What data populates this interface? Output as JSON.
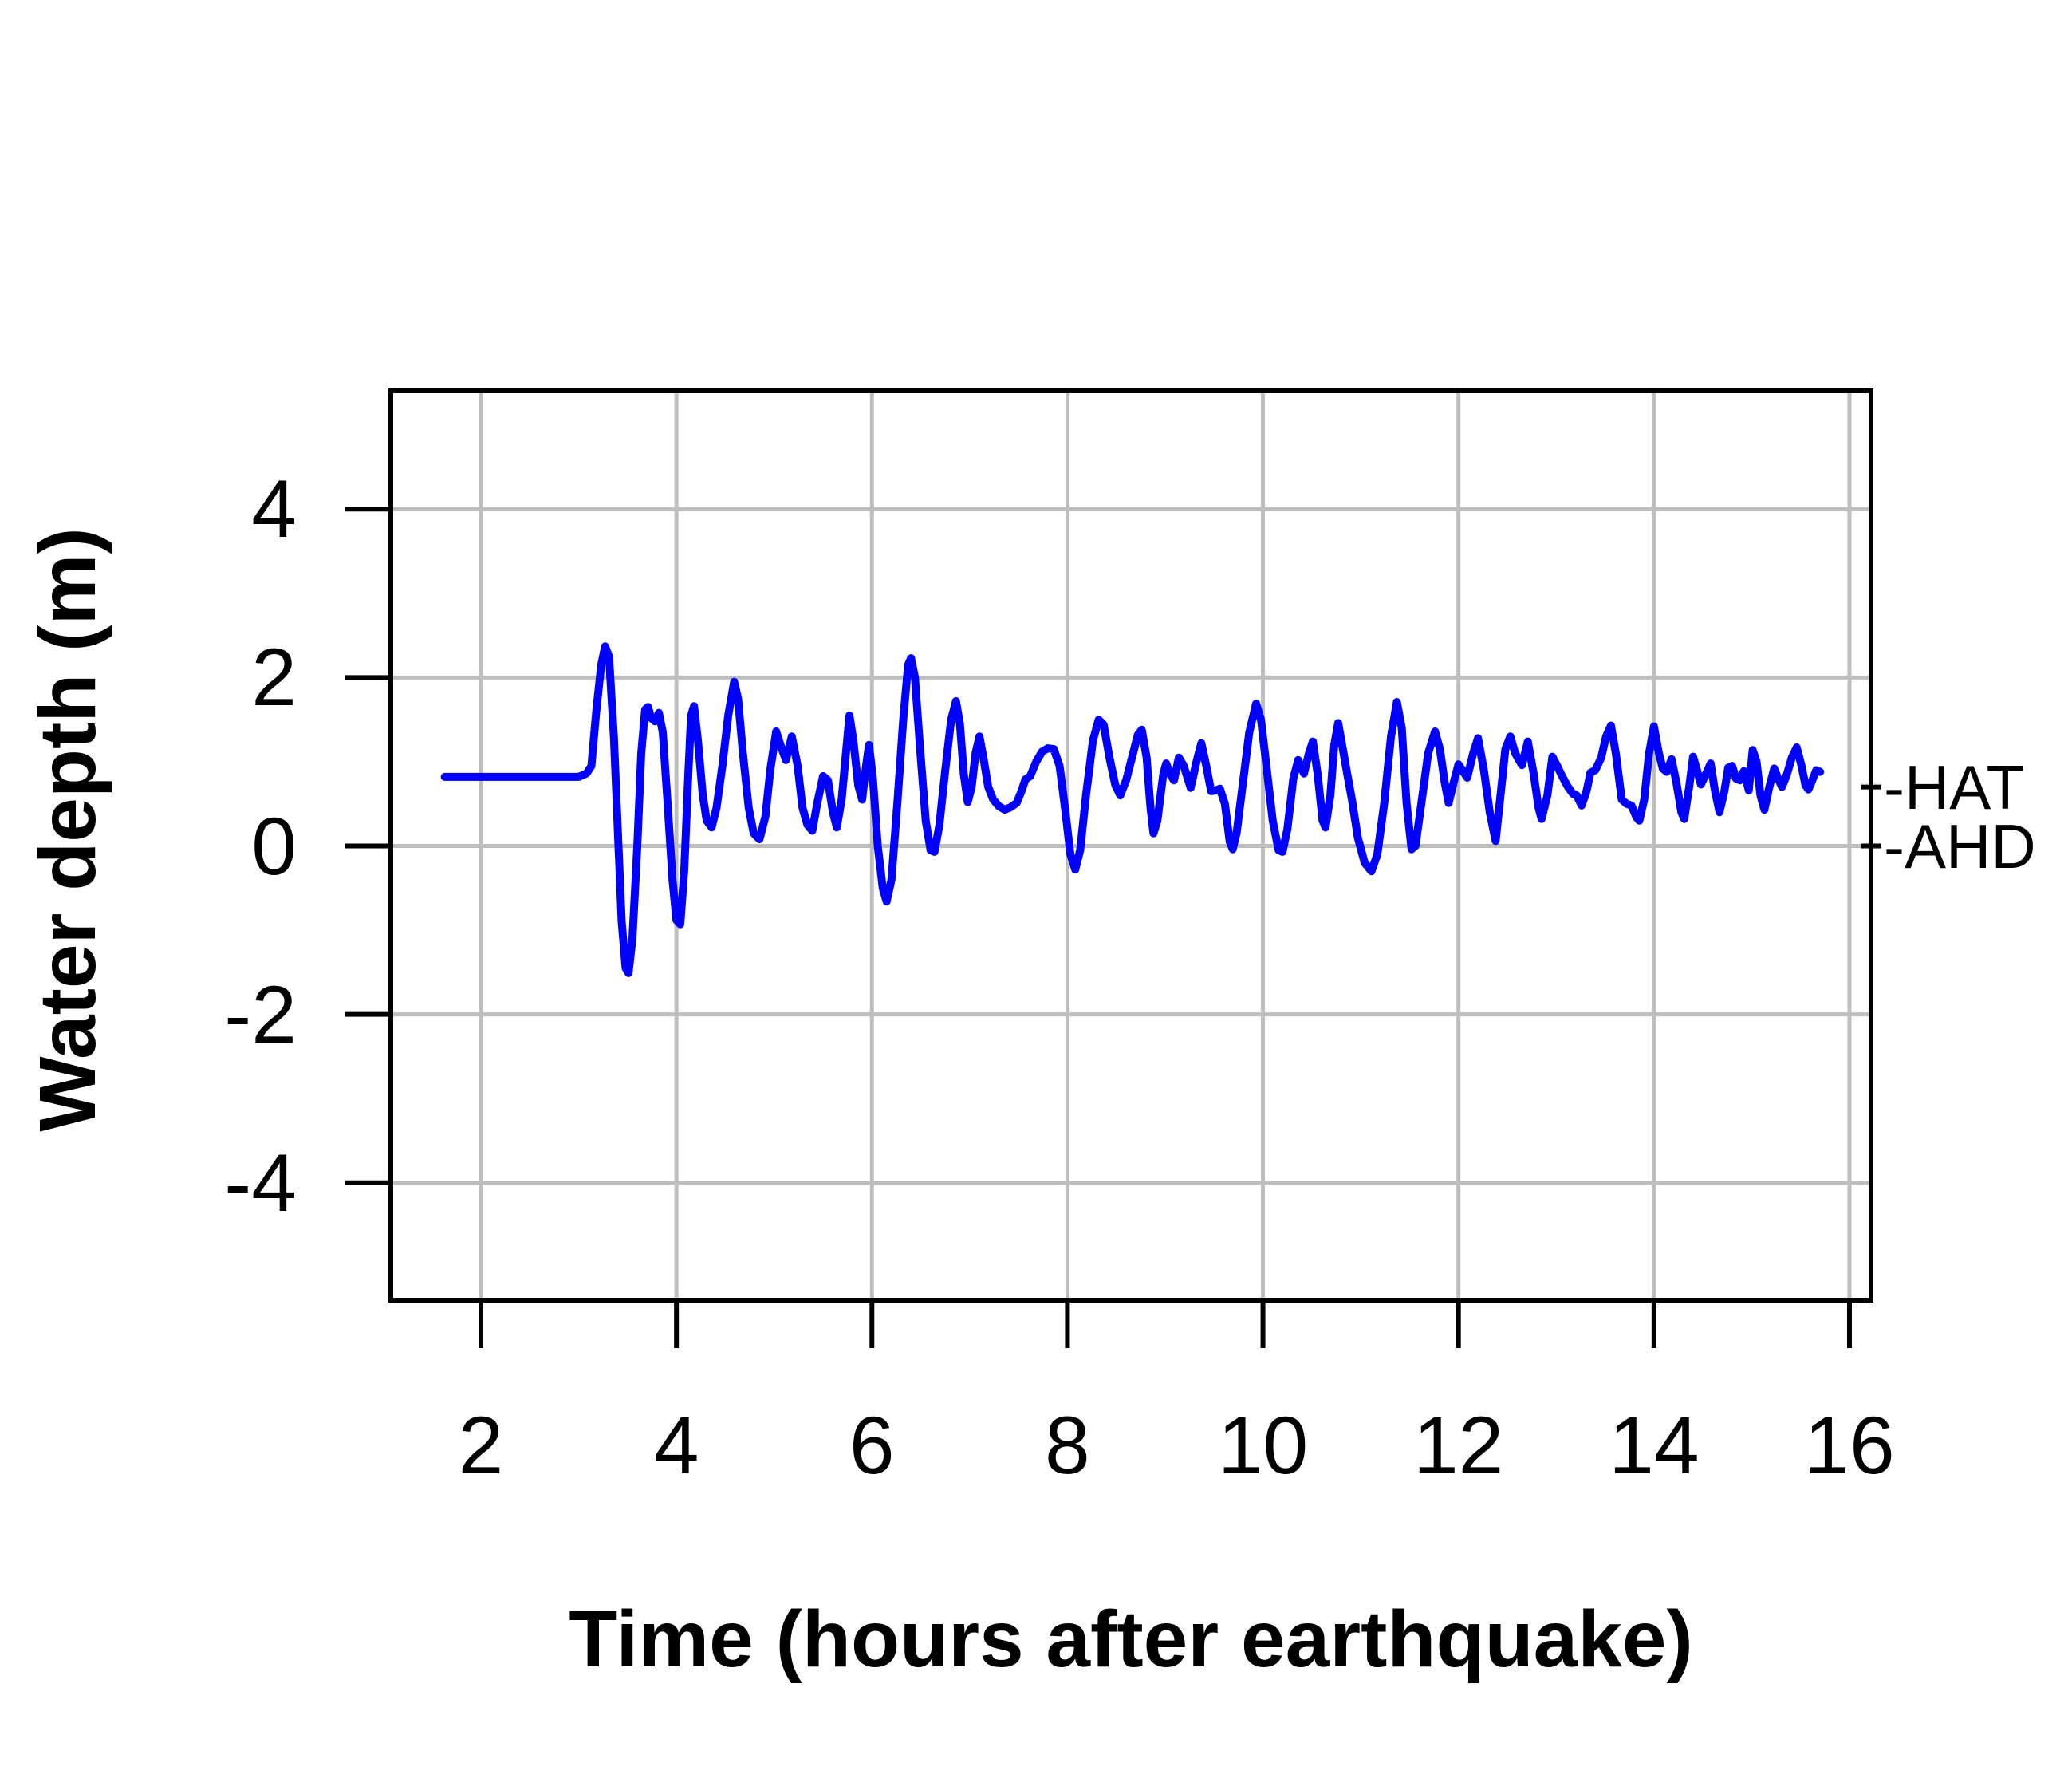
{
  "figure": {
    "background": "#ffffff"
  },
  "chart_data": {
    "type": "line",
    "title": "",
    "xlabel": "Time (hours after earthquake)",
    "ylabel": "Water depth (m)",
    "xlim": [
      1.08,
      16.22
    ],
    "ylim": [
      -5.4,
      5.4
    ],
    "x_ticks": [
      2,
      4,
      6,
      8,
      10,
      12,
      14,
      16
    ],
    "y_ticks": [
      -4,
      -2,
      0,
      2,
      4
    ],
    "grid": true,
    "grid_color": "#bebebe",
    "axis_color": "#000000",
    "line_color": "#0000ff",
    "legend_position": "none",
    "reference_marks": [
      {
        "name": "hat",
        "label": "-HAT",
        "value": 0.7
      },
      {
        "name": "ahd",
        "label": "-AHD",
        "value": 0.0
      }
    ],
    "series": [
      {
        "name": "water-depth",
        "points": [
          [
            1.63,
            0.82
          ],
          [
            1.8,
            0.82
          ],
          [
            2.0,
            0.82
          ],
          [
            2.2,
            0.82
          ],
          [
            2.4,
            0.82
          ],
          [
            2.6,
            0.82
          ],
          [
            2.8,
            0.82
          ],
          [
            3.0,
            0.82
          ],
          [
            3.08,
            0.86
          ],
          [
            3.13,
            0.95
          ],
          [
            3.18,
            1.6
          ],
          [
            3.23,
            2.15
          ],
          [
            3.27,
            2.37
          ],
          [
            3.31,
            2.25
          ],
          [
            3.36,
            1.3
          ],
          [
            3.4,
            0.2
          ],
          [
            3.44,
            -0.9
          ],
          [
            3.48,
            -1.45
          ],
          [
            3.51,
            -1.51
          ],
          [
            3.55,
            -1.1
          ],
          [
            3.6,
            0.0
          ],
          [
            3.64,
            1.1
          ],
          [
            3.68,
            1.62
          ],
          [
            3.71,
            1.65
          ],
          [
            3.74,
            1.52
          ],
          [
            3.78,
            1.48
          ],
          [
            3.82,
            1.58
          ],
          [
            3.86,
            1.35
          ],
          [
            3.91,
            0.5
          ],
          [
            3.96,
            -0.4
          ],
          [
            4.0,
            -0.88
          ],
          [
            4.04,
            -0.93
          ],
          [
            4.08,
            -0.3
          ],
          [
            4.12,
            0.8
          ],
          [
            4.15,
            1.55
          ],
          [
            4.18,
            1.66
          ],
          [
            4.22,
            1.25
          ],
          [
            4.27,
            0.6
          ],
          [
            4.31,
            0.3
          ],
          [
            4.36,
            0.22
          ],
          [
            4.41,
            0.45
          ],
          [
            4.47,
            0.95
          ],
          [
            4.53,
            1.55
          ],
          [
            4.59,
            1.95
          ],
          [
            4.63,
            1.75
          ],
          [
            4.68,
            1.1
          ],
          [
            4.74,
            0.45
          ],
          [
            4.79,
            0.15
          ],
          [
            4.85,
            0.08
          ],
          [
            4.91,
            0.35
          ],
          [
            4.96,
            0.9
          ],
          [
            5.02,
            1.36
          ],
          [
            5.07,
            1.18
          ],
          [
            5.12,
            1.02
          ],
          [
            5.18,
            1.3
          ],
          [
            5.24,
            0.95
          ],
          [
            5.29,
            0.45
          ],
          [
            5.34,
            0.25
          ],
          [
            5.39,
            0.18
          ],
          [
            5.44,
            0.5
          ],
          [
            5.5,
            0.83
          ],
          [
            5.55,
            0.78
          ],
          [
            5.6,
            0.4
          ],
          [
            5.64,
            0.22
          ],
          [
            5.69,
            0.55
          ],
          [
            5.73,
            1.05
          ],
          [
            5.77,
            1.55
          ],
          [
            5.81,
            1.25
          ],
          [
            5.86,
            0.72
          ],
          [
            5.9,
            0.55
          ],
          [
            5.94,
            0.95
          ],
          [
            5.97,
            1.2
          ],
          [
            6.01,
            0.8
          ],
          [
            6.06,
            0.0
          ],
          [
            6.11,
            -0.5
          ],
          [
            6.15,
            -0.66
          ],
          [
            6.2,
            -0.4
          ],
          [
            6.26,
            0.5
          ],
          [
            6.32,
            1.5
          ],
          [
            6.37,
            2.15
          ],
          [
            6.4,
            2.23
          ],
          [
            6.44,
            2.0
          ],
          [
            6.49,
            1.2
          ],
          [
            6.55,
            0.3
          ],
          [
            6.6,
            -0.05
          ],
          [
            6.64,
            -0.07
          ],
          [
            6.69,
            0.25
          ],
          [
            6.75,
            0.9
          ],
          [
            6.81,
            1.5
          ],
          [
            6.86,
            1.72
          ],
          [
            6.9,
            1.45
          ],
          [
            6.94,
            0.85
          ],
          [
            6.98,
            0.52
          ],
          [
            7.02,
            0.7
          ],
          [
            7.06,
            1.1
          ],
          [
            7.1,
            1.3
          ],
          [
            7.14,
            1.05
          ],
          [
            7.19,
            0.7
          ],
          [
            7.24,
            0.55
          ],
          [
            7.3,
            0.47
          ],
          [
            7.36,
            0.43
          ],
          [
            7.42,
            0.46
          ],
          [
            7.48,
            0.51
          ],
          [
            7.53,
            0.65
          ],
          [
            7.57,
            0.79
          ],
          [
            7.62,
            0.83
          ],
          [
            7.68,
            1.0
          ],
          [
            7.74,
            1.12
          ],
          [
            7.8,
            1.16
          ],
          [
            7.86,
            1.15
          ],
          [
            7.92,
            0.95
          ],
          [
            7.98,
            0.4
          ],
          [
            8.03,
            -0.1
          ],
          [
            8.08,
            -0.28
          ],
          [
            8.13,
            -0.05
          ],
          [
            8.19,
            0.6
          ],
          [
            8.26,
            1.25
          ],
          [
            8.32,
            1.5
          ],
          [
            8.37,
            1.44
          ],
          [
            8.43,
            1.05
          ],
          [
            8.49,
            0.72
          ],
          [
            8.54,
            0.6
          ],
          [
            8.6,
            0.78
          ],
          [
            8.66,
            1.05
          ],
          [
            8.72,
            1.32
          ],
          [
            8.76,
            1.38
          ],
          [
            8.81,
            1.05
          ],
          [
            8.85,
            0.45
          ],
          [
            8.88,
            0.15
          ],
          [
            8.92,
            0.3
          ],
          [
            8.98,
            0.85
          ],
          [
            9.01,
            0.98
          ],
          [
            9.05,
            0.85
          ],
          [
            9.09,
            0.78
          ],
          [
            9.14,
            1.05
          ],
          [
            9.19,
            0.95
          ],
          [
            9.26,
            0.69
          ],
          [
            9.32,
            1.0
          ],
          [
            9.37,
            1.22
          ],
          [
            9.42,
            0.95
          ],
          [
            9.47,
            0.65
          ],
          [
            9.52,
            0.66
          ],
          [
            9.56,
            0.68
          ],
          [
            9.61,
            0.5
          ],
          [
            9.66,
            0.05
          ],
          [
            9.69,
            -0.04
          ],
          [
            9.73,
            0.15
          ],
          [
            9.79,
            0.7
          ],
          [
            9.86,
            1.35
          ],
          [
            9.93,
            1.69
          ],
          [
            9.98,
            1.5
          ],
          [
            10.04,
            0.9
          ],
          [
            10.1,
            0.3
          ],
          [
            10.16,
            -0.05
          ],
          [
            10.2,
            -0.07
          ],
          [
            10.25,
            0.2
          ],
          [
            10.31,
            0.8
          ],
          [
            10.36,
            1.02
          ],
          [
            10.42,
            0.86
          ],
          [
            10.47,
            1.1
          ],
          [
            10.51,
            1.24
          ],
          [
            10.56,
            0.85
          ],
          [
            10.61,
            0.3
          ],
          [
            10.64,
            0.22
          ],
          [
            10.69,
            0.6
          ],
          [
            10.73,
            1.2
          ],
          [
            10.77,
            1.46
          ],
          [
            10.81,
            1.2
          ],
          [
            10.86,
            0.87
          ],
          [
            10.91,
            0.55
          ],
          [
            10.97,
            0.1
          ],
          [
            11.04,
            -0.2
          ],
          [
            11.11,
            -0.3
          ],
          [
            11.17,
            -0.1
          ],
          [
            11.24,
            0.5
          ],
          [
            11.31,
            1.3
          ],
          [
            11.37,
            1.71
          ],
          [
            11.42,
            1.4
          ],
          [
            11.47,
            0.5
          ],
          [
            11.52,
            -0.04
          ],
          [
            11.56,
            0.0
          ],
          [
            11.62,
            0.5
          ],
          [
            11.69,
            1.1
          ],
          [
            11.76,
            1.36
          ],
          [
            11.81,
            1.15
          ],
          [
            11.86,
            0.75
          ],
          [
            11.9,
            0.51
          ],
          [
            11.95,
            0.75
          ],
          [
            12.0,
            0.97
          ],
          [
            12.05,
            0.88
          ],
          [
            12.09,
            0.81
          ],
          [
            12.15,
            1.1
          ],
          [
            12.2,
            1.28
          ],
          [
            12.26,
            0.9
          ],
          [
            12.32,
            0.4
          ],
          [
            12.38,
            0.06
          ],
          [
            12.43,
            0.6
          ],
          [
            12.48,
            1.15
          ],
          [
            12.53,
            1.3
          ],
          [
            12.58,
            1.1
          ],
          [
            12.65,
            0.96
          ],
          [
            12.71,
            1.24
          ],
          [
            12.77,
            0.85
          ],
          [
            12.82,
            0.45
          ],
          [
            12.85,
            0.32
          ],
          [
            12.91,
            0.6
          ],
          [
            12.96,
            1.06
          ],
          [
            13.01,
            0.95
          ],
          [
            13.06,
            0.83
          ],
          [
            13.12,
            0.7
          ],
          [
            13.17,
            0.62
          ],
          [
            13.21,
            0.6
          ],
          [
            13.26,
            0.48
          ],
          [
            13.31,
            0.65
          ],
          [
            13.35,
            0.87
          ],
          [
            13.4,
            0.9
          ],
          [
            13.46,
            1.05
          ],
          [
            13.51,
            1.3
          ],
          [
            13.56,
            1.43
          ],
          [
            13.61,
            1.1
          ],
          [
            13.67,
            0.55
          ],
          [
            13.72,
            0.5
          ],
          [
            13.77,
            0.48
          ],
          [
            13.82,
            0.34
          ],
          [
            13.85,
            0.3
          ],
          [
            13.9,
            0.55
          ],
          [
            13.95,
            1.1
          ],
          [
            14.0,
            1.42
          ],
          [
            14.05,
            1.1
          ],
          [
            14.09,
            0.92
          ],
          [
            14.13,
            0.88
          ],
          [
            14.18,
            1.03
          ],
          [
            14.23,
            0.75
          ],
          [
            14.28,
            0.4
          ],
          [
            14.31,
            0.32
          ],
          [
            14.36,
            0.7
          ],
          [
            14.4,
            1.06
          ],
          [
            14.44,
            0.9
          ],
          [
            14.48,
            0.73
          ],
          [
            14.53,
            0.85
          ],
          [
            14.58,
            0.98
          ],
          [
            14.62,
            0.68
          ],
          [
            14.67,
            0.4
          ],
          [
            14.72,
            0.65
          ],
          [
            14.76,
            0.93
          ],
          [
            14.8,
            0.95
          ],
          [
            14.84,
            0.8
          ],
          [
            14.88,
            0.78
          ],
          [
            14.92,
            0.89
          ],
          [
            14.97,
            0.66
          ],
          [
            15.01,
            1.14
          ],
          [
            15.05,
            1.0
          ],
          [
            15.09,
            0.6
          ],
          [
            15.13,
            0.43
          ],
          [
            15.18,
            0.7
          ],
          [
            15.23,
            0.92
          ],
          [
            15.27,
            0.8
          ],
          [
            15.31,
            0.7
          ],
          [
            15.36,
            0.85
          ],
          [
            15.41,
            1.05
          ],
          [
            15.46,
            1.17
          ],
          [
            15.51,
            0.95
          ],
          [
            15.55,
            0.72
          ],
          [
            15.58,
            0.67
          ],
          [
            15.62,
            0.78
          ],
          [
            15.66,
            0.9
          ],
          [
            15.7,
            0.88
          ]
        ]
      }
    ]
  }
}
